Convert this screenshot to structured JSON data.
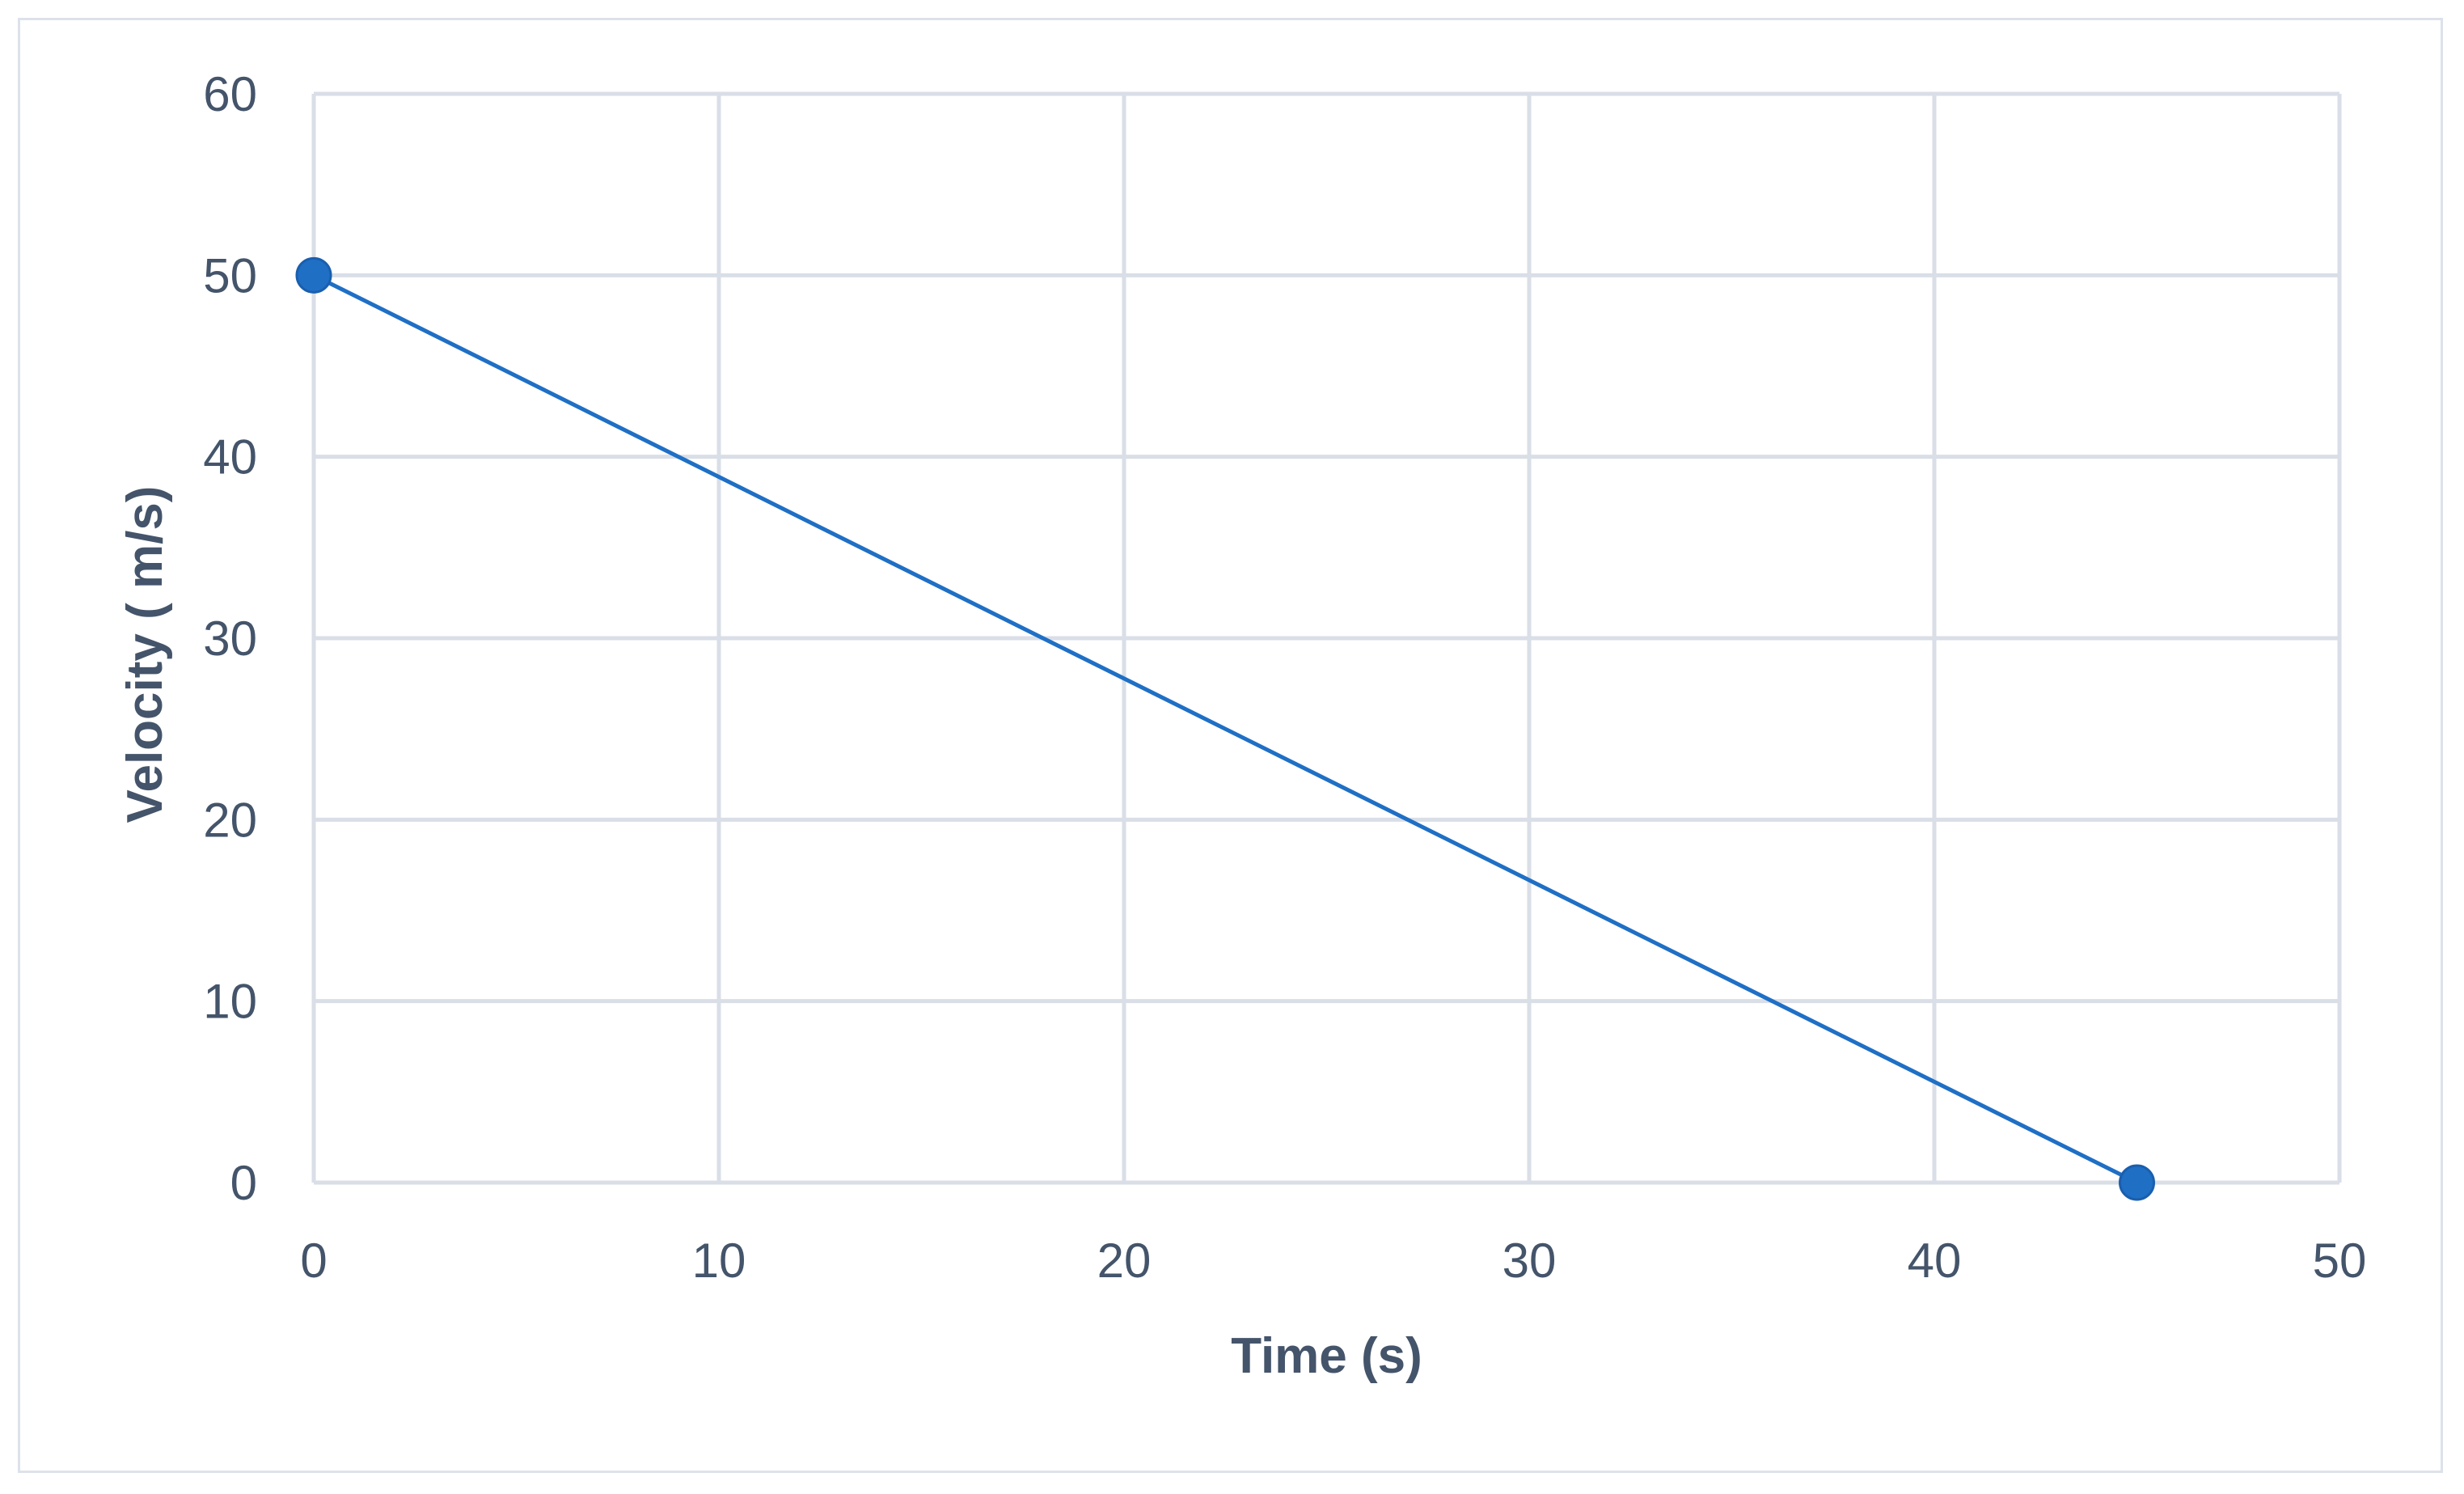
{
  "chart_data": {
    "type": "scatter",
    "title": "",
    "xlabel": "Time (s)",
    "ylabel": "Velocity ( m/s)",
    "xlim": [
      0,
      50
    ],
    "ylim": [
      0,
      60
    ],
    "x_ticks": [
      "0",
      "10",
      "20",
      "30",
      "40",
      "50"
    ],
    "y_ticks": [
      "0",
      "10",
      "20",
      "30",
      "40",
      "50",
      "60"
    ],
    "grid": true,
    "legend": "none",
    "series": [
      {
        "x": [
          0,
          45
        ],
        "y": [
          50,
          0
        ],
        "color": "#1f6fc5",
        "markers": true,
        "line": "straight"
      }
    ]
  }
}
